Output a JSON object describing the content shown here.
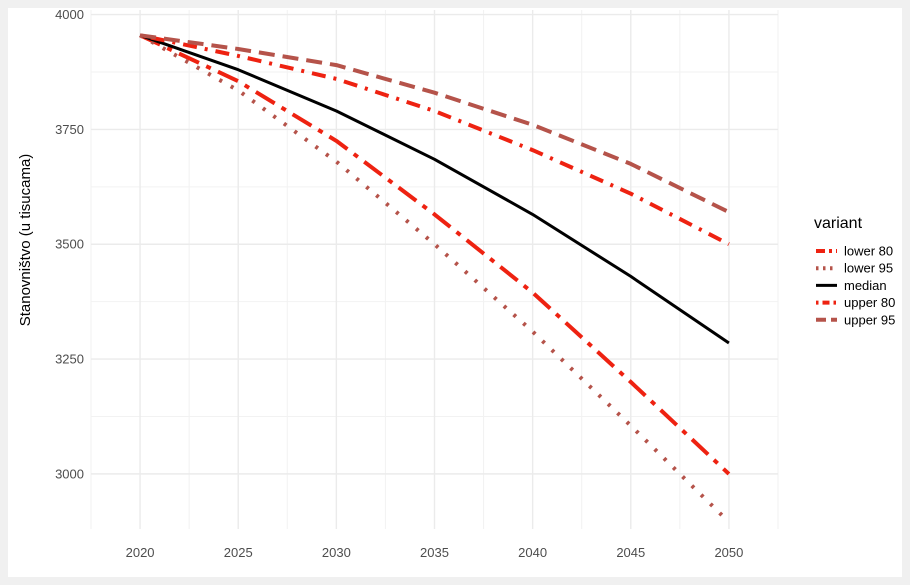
{
  "chart_data": {
    "type": "line",
    "title": "",
    "xlabel": "",
    "ylabel": "Stanovništvo (u tisucama)",
    "x": [
      2020,
      2025,
      2030,
      2035,
      2040,
      2045,
      2050
    ],
    "xlim": [
      2017.5,
      2052.5
    ],
    "ylim": [
      2880,
      4010
    ],
    "x_ticks": [
      "2020",
      "2025",
      "2030",
      "2035",
      "2040",
      "2045",
      "2050"
    ],
    "y_ticks": [
      "3000",
      "3250",
      "3500",
      "3750",
      "4000"
    ],
    "grid": true,
    "legend": {
      "title": "variant",
      "position": "right"
    },
    "series": [
      {
        "name": "lower 80",
        "color": "#ee2211",
        "dash": "longdash-dot",
        "width": 4,
        "values": [
          3955,
          3855,
          3725,
          3565,
          3395,
          3200,
          3000
        ]
      },
      {
        "name": "lower 95",
        "color": "#b5534a",
        "dash": "dotted",
        "width": 4,
        "values": [
          3955,
          3835,
          3680,
          3500,
          3310,
          3105,
          2895
        ]
      },
      {
        "name": "median",
        "color": "#000000",
        "dash": "solid",
        "width": 3,
        "values": [
          3955,
          3880,
          3790,
          3685,
          3565,
          3430,
          3285
        ]
      },
      {
        "name": "upper 80",
        "color": "#ee2211",
        "dash": "dotdash",
        "width": 4,
        "values": [
          3955,
          3910,
          3860,
          3790,
          3705,
          3610,
          3500
        ]
      },
      {
        "name": "upper 95",
        "color": "#b5534a",
        "dash": "dashed",
        "width": 4,
        "values": [
          3955,
          3925,
          3890,
          3830,
          3760,
          3675,
          3570
        ]
      }
    ]
  }
}
